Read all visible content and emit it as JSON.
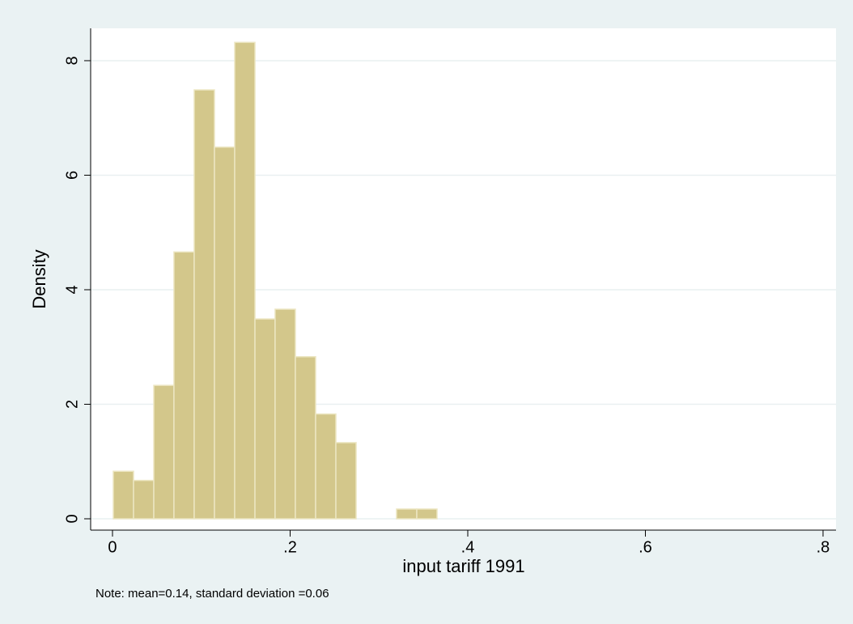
{
  "chart_data": {
    "type": "histogram",
    "x_label": "input tariff 1991",
    "y_label": "Density",
    "note": "Note:  mean=0.14, standard deviation =0.06",
    "bins": [
      0.0009,
      0.0237,
      0.0465,
      0.0692,
      0.092,
      0.1148,
      0.1376,
      0.1604,
      0.1831,
      0.2059,
      0.2287,
      0.2515,
      0.2743,
      0.297,
      0.3198,
      0.3426,
      0.3654
    ],
    "values": [
      0.83,
      0.67,
      2.33,
      4.66,
      7.49,
      6.49,
      8.32,
      3.49,
      3.66,
      2.83,
      1.83,
      1.33,
      0,
      0,
      0.17,
      0.17
    ],
    "color": "#d3c78b",
    "xlim": [
      -0.0246,
      0.8146
    ],
    "ylim": [
      -0.198,
      8.565
    ],
    "xticks": [
      0,
      {
        "value": 0.2,
        "label": ".2"
      },
      {
        "value": 0.4,
        "label": ".4"
      },
      {
        "value": 0.6,
        "label": ".6"
      },
      {
        "value": 0.8,
        "label": ".8"
      }
    ],
    "yticks": [
      0,
      2,
      4,
      6,
      8
    ],
    "grid": true
  }
}
